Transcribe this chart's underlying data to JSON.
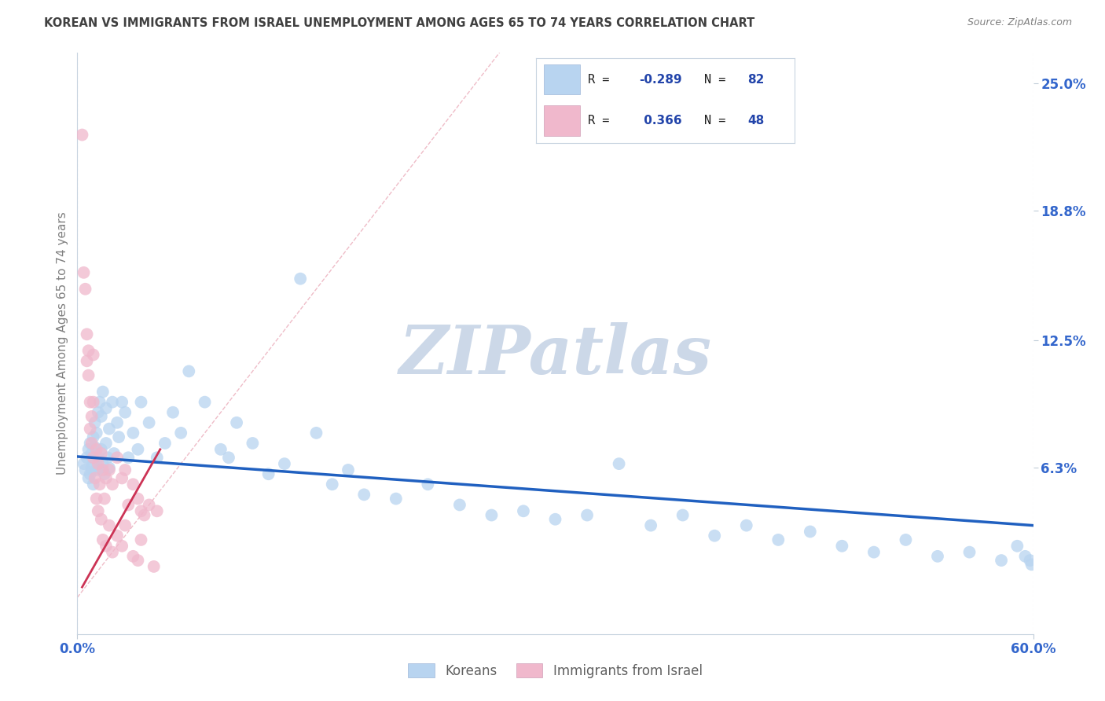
{
  "title": "KOREAN VS IMMIGRANTS FROM ISRAEL UNEMPLOYMENT AMONG AGES 65 TO 74 YEARS CORRELATION CHART",
  "source": "Source: ZipAtlas.com",
  "ylabel": "Unemployment Among Ages 65 to 74 years",
  "xlim": [
    0.0,
    0.6
  ],
  "ylim": [
    -0.018,
    0.265
  ],
  "ytick_labels": [
    "6.3%",
    "12.5%",
    "18.8%",
    "25.0%"
  ],
  "ytick_positions": [
    0.063,
    0.125,
    0.188,
    0.25
  ],
  "legend_label1": "Koreans",
  "legend_label2": "Immigrants from Israel",
  "r1": -0.289,
  "n1": 82,
  "r2": 0.366,
  "n2": 48,
  "color_korean": "#b8d4f0",
  "color_israel": "#f0b8cc",
  "color_trendline_korean": "#2060c0",
  "color_trendline_israel": "#cc3355",
  "color_diagonal": "#e8a0b0",
  "background_color": "#ffffff",
  "title_color": "#404040",
  "watermark_color": "#ccd8e8",
  "watermark_text": "ZIPatlas",
  "legend_text_color": "#2244aa",
  "legend_r_label_color": "#202020",
  "korean_x": [
    0.004,
    0.005,
    0.006,
    0.007,
    0.007,
    0.008,
    0.008,
    0.009,
    0.009,
    0.01,
    0.01,
    0.01,
    0.011,
    0.011,
    0.012,
    0.012,
    0.013,
    0.013,
    0.014,
    0.014,
    0.015,
    0.015,
    0.016,
    0.016,
    0.017,
    0.018,
    0.018,
    0.019,
    0.02,
    0.02,
    0.022,
    0.023,
    0.025,
    0.026,
    0.028,
    0.03,
    0.032,
    0.035,
    0.038,
    0.04,
    0.045,
    0.05,
    0.055,
    0.06,
    0.065,
    0.07,
    0.08,
    0.09,
    0.095,
    0.1,
    0.11,
    0.12,
    0.13,
    0.14,
    0.15,
    0.16,
    0.17,
    0.18,
    0.2,
    0.22,
    0.24,
    0.26,
    0.28,
    0.3,
    0.32,
    0.34,
    0.36,
    0.38,
    0.4,
    0.42,
    0.44,
    0.46,
    0.48,
    0.5,
    0.52,
    0.54,
    0.56,
    0.58,
    0.59,
    0.595,
    0.598,
    0.599
  ],
  "korean_y": [
    0.065,
    0.062,
    0.068,
    0.058,
    0.072,
    0.06,
    0.075,
    0.063,
    0.07,
    0.065,
    0.078,
    0.055,
    0.073,
    0.085,
    0.062,
    0.08,
    0.068,
    0.09,
    0.063,
    0.095,
    0.072,
    0.088,
    0.065,
    0.1,
    0.06,
    0.075,
    0.092,
    0.068,
    0.063,
    0.082,
    0.095,
    0.07,
    0.085,
    0.078,
    0.095,
    0.09,
    0.068,
    0.08,
    0.072,
    0.095,
    0.085,
    0.068,
    0.075,
    0.09,
    0.08,
    0.11,
    0.095,
    0.072,
    0.068,
    0.085,
    0.075,
    0.06,
    0.065,
    0.155,
    0.08,
    0.055,
    0.062,
    0.05,
    0.048,
    0.055,
    0.045,
    0.04,
    0.042,
    0.038,
    0.04,
    0.065,
    0.035,
    0.04,
    0.03,
    0.035,
    0.028,
    0.032,
    0.025,
    0.022,
    0.028,
    0.02,
    0.022,
    0.018,
    0.025,
    0.02,
    0.018,
    0.016
  ],
  "israel_x": [
    0.003,
    0.004,
    0.005,
    0.006,
    0.006,
    0.007,
    0.007,
    0.008,
    0.008,
    0.009,
    0.009,
    0.01,
    0.01,
    0.01,
    0.011,
    0.012,
    0.012,
    0.013,
    0.013,
    0.014,
    0.015,
    0.015,
    0.016,
    0.016,
    0.017,
    0.018,
    0.018,
    0.02,
    0.02,
    0.022,
    0.022,
    0.025,
    0.025,
    0.028,
    0.028,
    0.03,
    0.03,
    0.032,
    0.035,
    0.035,
    0.038,
    0.038,
    0.04,
    0.04,
    0.042,
    0.045,
    0.048,
    0.05
  ],
  "israel_y": [
    0.225,
    0.158,
    0.15,
    0.128,
    0.115,
    0.12,
    0.108,
    0.095,
    0.082,
    0.088,
    0.075,
    0.118,
    0.095,
    0.068,
    0.058,
    0.072,
    0.048,
    0.065,
    0.042,
    0.055,
    0.07,
    0.038,
    0.062,
    0.028,
    0.048,
    0.058,
    0.025,
    0.062,
    0.035,
    0.055,
    0.022,
    0.068,
    0.03,
    0.058,
    0.025,
    0.062,
    0.035,
    0.045,
    0.055,
    0.02,
    0.048,
    0.018,
    0.042,
    0.028,
    0.04,
    0.045,
    0.015,
    0.042
  ],
  "trendline_korean_x0": 0.0,
  "trendline_korean_x1": 0.6,
  "trendline_korean_y0": 0.0685,
  "trendline_korean_y1": 0.035,
  "trendline_israel_x0": 0.003,
  "trendline_israel_x1": 0.052,
  "trendline_israel_y0": 0.005,
  "trendline_israel_y1": 0.072
}
